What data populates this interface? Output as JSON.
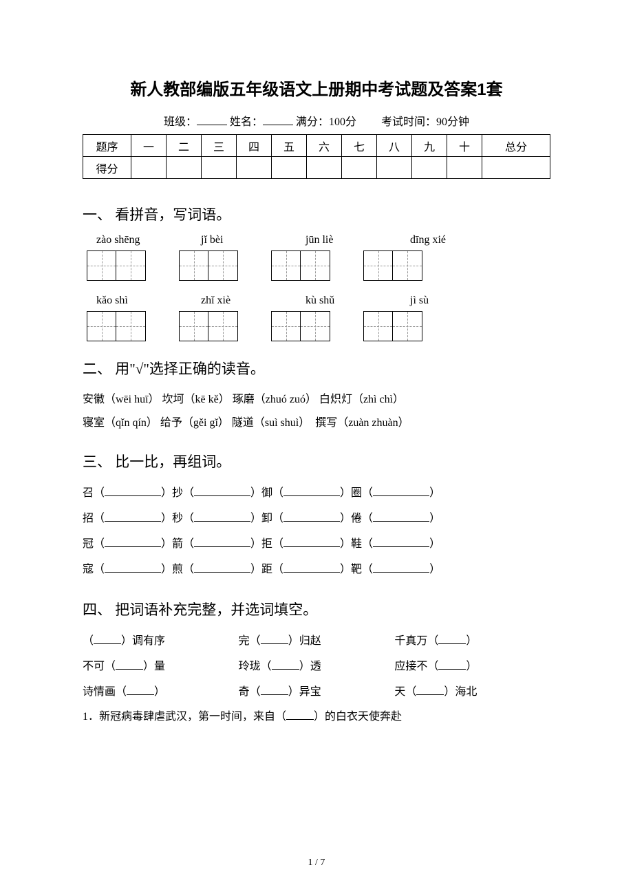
{
  "title": "新人教部编版五年级语文上册期中考试题及答案1套",
  "info": {
    "class_label": "班级：",
    "name_label": "姓名：",
    "full_score": "满分：100分",
    "exam_time": "考试时间：90分钟"
  },
  "score_table": {
    "row1": [
      "题序",
      "一",
      "二",
      "三",
      "四",
      "五",
      "六",
      "七",
      "八",
      "九",
      "十",
      "总分"
    ],
    "row2_label": "得分"
  },
  "section1": {
    "title": "一、 看拼音，写词语。",
    "pinyin_row1": [
      "zào shēng",
      "jǐ bèi",
      "jūn liè",
      "dīng xié"
    ],
    "pinyin_row2": [
      "kǎo shì",
      "zhǐ xiè",
      "kù shǔ",
      "jì sù"
    ]
  },
  "section2": {
    "title": "二、 用\"√\"选择正确的读音。",
    "line1": "安徽（wēi huī） 坎坷（kē kě） 琢磨（zhuó zuó） 白炽灯（zhì chì）",
    "line2": "寝室（qǐn qín） 给予（gěi gǐ） 隧道（suì shuì）　撰写（zuàn zhuàn）"
  },
  "section3": {
    "title": "三、 比一比，再组词。",
    "rows": [
      [
        "召（",
        "）抄（",
        "）御（",
        "）圈（",
        "）"
      ],
      [
        "招（",
        "）秒（",
        "）卸（",
        "）倦（",
        "）"
      ],
      [
        "冠（",
        "）箭（",
        "）拒（",
        "）鞋（",
        "）"
      ],
      [
        "寇（",
        "）煎（",
        "）距（",
        "）靶（",
        "）"
      ]
    ]
  },
  "section4": {
    "title": "四、 把词语补充完整，并选词填空。",
    "rows": [
      [
        "（",
        "）调有序",
        "完（",
        "）归赵",
        "千真万（",
        "）"
      ],
      [
        "不可（",
        "）量",
        "玲珑（",
        "）透",
        "应接不（",
        "）"
      ],
      [
        "诗情画（",
        "）",
        "奇（",
        "）异宝",
        "天（",
        "）海北"
      ]
    ],
    "q1": "1．新冠病毒肆虐武汉，第一时间，来自（",
    "q1_suffix": "）的白衣天使奔赴"
  },
  "page_number": "1 / 7"
}
